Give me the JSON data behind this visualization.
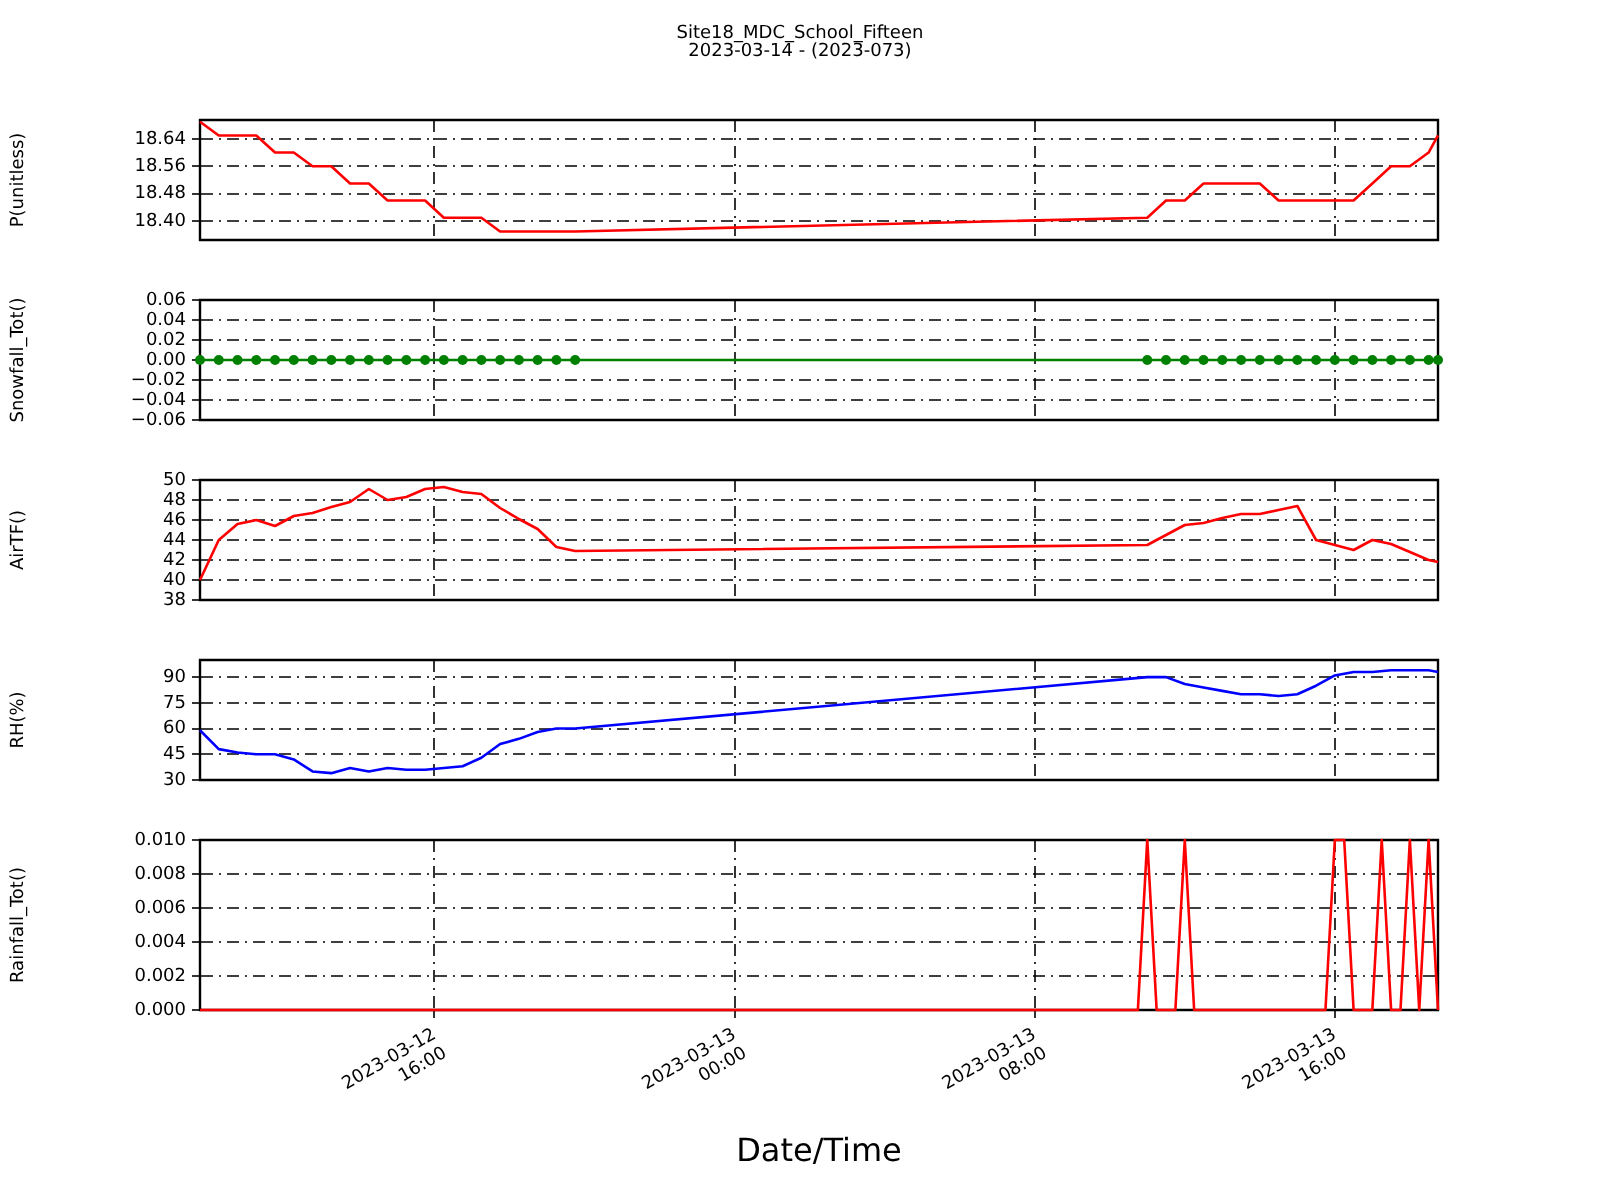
{
  "chart_data": [
    {
      "type": "line",
      "title": "Site18_MDC_School_Fifteen",
      "subtitle": "2023-03-14 - (2023-073)",
      "ylabel": "P(unitless)",
      "tick_labels": "y",
      "grid": true,
      "line_style": "solid",
      "xlim": [
        "2023-03-12T09:45",
        "2023-03-13T18:45"
      ],
      "xticks": [
        {
          "value": "2023-03-12T16:00",
          "label": null
        },
        {
          "value": "2023-03-13T00:00",
          "label": null
        },
        {
          "value": "2023-03-13T08:00",
          "label": null
        },
        {
          "value": "2023-03-13T16:00",
          "label": null
        }
      ],
      "ylim": [
        18.345,
        18.695
      ],
      "yticks": [
        {
          "value": 18.4,
          "label": "18.40"
        },
        {
          "value": 18.48,
          "label": "18.48"
        },
        {
          "value": 18.56,
          "label": "18.56"
        },
        {
          "value": 18.64,
          "label": "18.64"
        }
      ],
      "x": [
        "2023-03-12T09:45",
        "2023-03-12T10:15",
        "2023-03-12T10:45",
        "2023-03-12T11:15",
        "2023-03-12T11:45",
        "2023-03-12T12:15",
        "2023-03-12T12:45",
        "2023-03-12T13:15",
        "2023-03-12T13:45",
        "2023-03-12T14:15",
        "2023-03-12T14:45",
        "2023-03-12T15:15",
        "2023-03-12T15:45",
        "2023-03-12T16:15",
        "2023-03-12T16:45",
        "2023-03-12T17:15",
        "2023-03-12T17:45",
        "2023-03-12T18:15",
        "2023-03-12T18:45",
        "2023-03-12T19:15",
        "2023-03-12T19:45",
        "2023-03-13T11:00",
        "2023-03-13T11:30",
        "2023-03-13T12:00",
        "2023-03-13T12:30",
        "2023-03-13T13:00",
        "2023-03-13T13:30",
        "2023-03-13T14:00",
        "2023-03-13T14:30",
        "2023-03-13T15:00",
        "2023-03-13T15:30",
        "2023-03-13T16:00",
        "2023-03-13T16:30",
        "2023-03-13T17:00",
        "2023-03-13T17:30",
        "2023-03-13T18:00",
        "2023-03-13T18:30",
        "2023-03-13T18:45"
      ],
      "series": [
        {
          "color": "#ff0000",
          "values": [
            18.69,
            18.65,
            18.65,
            18.65,
            18.6,
            18.6,
            18.56,
            18.56,
            18.51,
            18.51,
            18.46,
            18.46,
            18.46,
            18.41,
            18.41,
            18.41,
            18.37,
            18.37,
            18.37,
            18.37,
            18.37,
            18.41,
            18.46,
            18.46,
            18.51,
            18.51,
            18.51,
            18.51,
            18.46,
            18.46,
            18.46,
            18.46,
            18.46,
            18.51,
            18.56,
            18.56,
            18.6,
            18.65
          ]
        }
      ]
    },
    {
      "type": "line",
      "ylabel": "Snowfall_Tot()",
      "tick_labels": "y",
      "grid": true,
      "line_style": "solid",
      "marker": "circle",
      "xlim": [
        "2023-03-12T09:45",
        "2023-03-13T18:45"
      ],
      "xticks": [
        {
          "value": "2023-03-12T16:00",
          "label": null
        },
        {
          "value": "2023-03-13T00:00",
          "label": null
        },
        {
          "value": "2023-03-13T08:00",
          "label": null
        },
        {
          "value": "2023-03-13T16:00",
          "label": null
        }
      ],
      "ylim": [
        -0.06,
        0.06
      ],
      "yticks": [
        {
          "value": -0.06,
          "label": "−0.06"
        },
        {
          "value": -0.04,
          "label": "−0.04"
        },
        {
          "value": -0.02,
          "label": "−0.02"
        },
        {
          "value": 0,
          "label": "0.00"
        },
        {
          "value": 0.02,
          "label": "0.02"
        },
        {
          "value": 0.04,
          "label": "0.04"
        },
        {
          "value": 0.06,
          "label": "0.06"
        }
      ],
      "x": [
        "2023-03-12T09:45",
        "2023-03-12T10:15",
        "2023-03-12T10:45",
        "2023-03-12T11:15",
        "2023-03-12T11:45",
        "2023-03-12T12:15",
        "2023-03-12T12:45",
        "2023-03-12T13:15",
        "2023-03-12T13:45",
        "2023-03-12T14:15",
        "2023-03-12T14:45",
        "2023-03-12T15:15",
        "2023-03-12T15:45",
        "2023-03-12T16:15",
        "2023-03-12T16:45",
        "2023-03-12T17:15",
        "2023-03-12T17:45",
        "2023-03-12T18:15",
        "2023-03-12T18:45",
        "2023-03-12T19:15",
        "2023-03-12T19:45",
        "2023-03-13T11:00",
        "2023-03-13T11:30",
        "2023-03-13T12:00",
        "2023-03-13T12:30",
        "2023-03-13T13:00",
        "2023-03-13T13:30",
        "2023-03-13T14:00",
        "2023-03-13T14:30",
        "2023-03-13T15:00",
        "2023-03-13T15:30",
        "2023-03-13T16:00",
        "2023-03-13T16:30",
        "2023-03-13T17:00",
        "2023-03-13T17:30",
        "2023-03-13T18:00",
        "2023-03-13T18:30",
        "2023-03-13T18:45"
      ],
      "series": [
        {
          "color": "#008000",
          "values": [
            0,
            0,
            0,
            0,
            0,
            0,
            0,
            0,
            0,
            0,
            0,
            0,
            0,
            0,
            0,
            0,
            0,
            0,
            0,
            0,
            0,
            0,
            0,
            0,
            0,
            0,
            0,
            0,
            0,
            0,
            0,
            0,
            0,
            0,
            0,
            0,
            0,
            0
          ]
        }
      ]
    },
    {
      "type": "line",
      "ylabel": "AirTF()",
      "tick_labels": "y",
      "grid": true,
      "line_style": "solid",
      "xlim": [
        "2023-03-12T09:45",
        "2023-03-13T18:45"
      ],
      "xticks": [
        {
          "value": "2023-03-12T16:00",
          "label": null
        },
        {
          "value": "2023-03-13T00:00",
          "label": null
        },
        {
          "value": "2023-03-13T08:00",
          "label": null
        },
        {
          "value": "2023-03-13T16:00",
          "label": null
        }
      ],
      "ylim": [
        38,
        50
      ],
      "yticks": [
        38,
        40,
        42,
        44,
        46,
        48,
        50
      ],
      "x": [
        "2023-03-12T09:45",
        "2023-03-12T10:15",
        "2023-03-12T10:45",
        "2023-03-12T11:15",
        "2023-03-12T11:45",
        "2023-03-12T12:15",
        "2023-03-12T12:45",
        "2023-03-12T13:15",
        "2023-03-12T13:45",
        "2023-03-12T14:15",
        "2023-03-12T14:45",
        "2023-03-12T15:15",
        "2023-03-12T15:45",
        "2023-03-12T16:15",
        "2023-03-12T16:45",
        "2023-03-12T17:15",
        "2023-03-12T17:45",
        "2023-03-12T18:15",
        "2023-03-12T18:45",
        "2023-03-12T19:15",
        "2023-03-12T19:45",
        "2023-03-13T11:00",
        "2023-03-13T11:30",
        "2023-03-13T12:00",
        "2023-03-13T12:30",
        "2023-03-13T13:00",
        "2023-03-13T13:30",
        "2023-03-13T14:00",
        "2023-03-13T14:30",
        "2023-03-13T15:00",
        "2023-03-13T15:30",
        "2023-03-13T16:00",
        "2023-03-13T16:30",
        "2023-03-13T17:00",
        "2023-03-13T17:30",
        "2023-03-13T18:00",
        "2023-03-13T18:30",
        "2023-03-13T18:45"
      ],
      "series": [
        {
          "color": "#ff0000",
          "values": [
            40.0,
            44.0,
            45.6,
            46.0,
            45.4,
            46.4,
            46.7,
            47.3,
            47.8,
            49.1,
            48.0,
            48.3,
            49.1,
            49.3,
            48.8,
            48.6,
            47.2,
            46.1,
            45.1,
            43.3,
            42.9,
            43.5,
            44.5,
            45.5,
            45.7,
            46.2,
            46.6,
            46.6,
            47.0,
            47.4,
            44.0,
            43.5,
            43.0,
            44.0,
            43.6,
            42.8,
            42.0,
            41.8
          ]
        }
      ]
    },
    {
      "type": "line",
      "ylabel": "RH(%)",
      "tick_labels": "y",
      "grid": true,
      "line_style": "solid",
      "xlim": [
        "2023-03-12T09:45",
        "2023-03-13T18:45"
      ],
      "xticks": [
        {
          "value": "2023-03-12T16:00",
          "label": null
        },
        {
          "value": "2023-03-13T00:00",
          "label": null
        },
        {
          "value": "2023-03-13T08:00",
          "label": null
        },
        {
          "value": "2023-03-13T16:00",
          "label": null
        }
      ],
      "ylim": [
        30,
        100
      ],
      "yticks": [
        30,
        45,
        60,
        75,
        90
      ],
      "x": [
        "2023-03-12T09:45",
        "2023-03-12T10:15",
        "2023-03-12T10:45",
        "2023-03-12T11:15",
        "2023-03-12T11:45",
        "2023-03-12T12:15",
        "2023-03-12T12:45",
        "2023-03-12T13:15",
        "2023-03-12T13:45",
        "2023-03-12T14:15",
        "2023-03-12T14:45",
        "2023-03-12T15:15",
        "2023-03-12T15:45",
        "2023-03-12T16:15",
        "2023-03-12T16:45",
        "2023-03-12T17:15",
        "2023-03-12T17:45",
        "2023-03-12T18:15",
        "2023-03-12T18:45",
        "2023-03-12T19:15",
        "2023-03-12T19:45",
        "2023-03-13T11:00",
        "2023-03-13T11:30",
        "2023-03-13T12:00",
        "2023-03-13T12:30",
        "2023-03-13T13:00",
        "2023-03-13T13:30",
        "2023-03-13T14:00",
        "2023-03-13T14:30",
        "2023-03-13T15:00",
        "2023-03-13T15:30",
        "2023-03-13T16:00",
        "2023-03-13T16:30",
        "2023-03-13T17:00",
        "2023-03-13T17:30",
        "2023-03-13T18:00",
        "2023-03-13T18:30",
        "2023-03-13T18:45"
      ],
      "series": [
        {
          "color": "#0000ff",
          "values": [
            59,
            48,
            46,
            45,
            45,
            42,
            35,
            34,
            37,
            35,
            37,
            36,
            36,
            37,
            38,
            43,
            51,
            54,
            58,
            60,
            60,
            90,
            90,
            86,
            84,
            82,
            80,
            80,
            79,
            80,
            85,
            91,
            93,
            93,
            94,
            94,
            94,
            93
          ]
        }
      ]
    },
    {
      "type": "line",
      "ylabel": "Rainfall_Tot()",
      "xlabel": "Date/Time",
      "grid": true,
      "line_style": "solid",
      "xlim": [
        "2023-03-12T09:45",
        "2023-03-13T18:45"
      ],
      "xticks": [
        {
          "value": "2023-03-12T16:00",
          "label": "2023-03-12\n16:00"
        },
        {
          "value": "2023-03-13T00:00",
          "label": "2023-03-13\n00:00"
        },
        {
          "value": "2023-03-13T08:00",
          "label": "2023-03-13\n08:00"
        },
        {
          "value": "2023-03-13T16:00",
          "label": "2023-03-13\n16:00"
        }
      ],
      "ylim": [
        0,
        0.01
      ],
      "yticks": [
        {
          "value": 0,
          "label": "0.000"
        },
        {
          "value": 0.002,
          "label": "0.002"
        },
        {
          "value": 0.004,
          "label": "0.004"
        },
        {
          "value": 0.006,
          "label": "0.006"
        },
        {
          "value": 0.008,
          "label": "0.008"
        },
        {
          "value": 0.01,
          "label": "0.010"
        }
      ],
      "x": [
        "2023-03-12T09:45",
        "2023-03-12T19:45",
        "2023-03-13T10:45",
        "2023-03-13T11:00",
        "2023-03-13T11:15",
        "2023-03-13T11:45",
        "2023-03-13T12:00",
        "2023-03-13T12:15",
        "2023-03-13T15:45",
        "2023-03-13T16:00",
        "2023-03-13T16:15",
        "2023-03-13T16:30",
        "2023-03-13T17:00",
        "2023-03-13T17:15",
        "2023-03-13T17:30",
        "2023-03-13T17:45",
        "2023-03-13T18:00",
        "2023-03-13T18:15",
        "2023-03-13T18:30",
        "2023-03-13T18:45"
      ],
      "series": [
        {
          "color": "#ff0000",
          "values": [
            0,
            0,
            0,
            0.01,
            0,
            0,
            0.01,
            0,
            0,
            0.01,
            0.01,
            0,
            0,
            0.01,
            0,
            0,
            0.01,
            0,
            0.01,
            0
          ]
        }
      ]
    }
  ]
}
